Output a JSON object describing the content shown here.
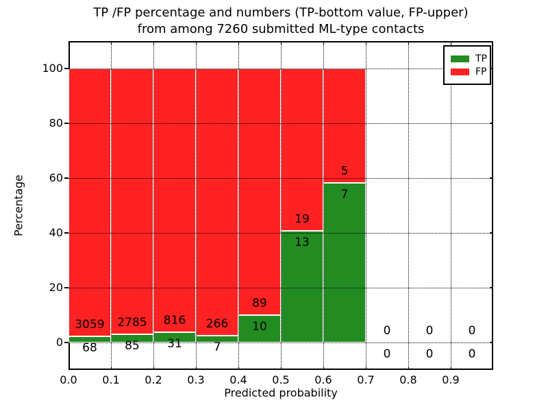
{
  "title": {
    "line1": "TP /FP percentage and numbers (TP-bottom value, FP-upper)",
    "line2": "from among 7260 submitted ML-type contacts"
  },
  "chart_data": {
    "type": "bar",
    "stacked": true,
    "title": "TP /FP percentage and numbers (TP-bottom value, FP-upper) from among 7260 submitted ML-type contacts",
    "xlabel": "Predicted probability",
    "ylabel": "Percentage",
    "xlim": [
      0.0,
      1.0
    ],
    "ylim": [
      -10,
      110
    ],
    "xticks": [
      "0.0",
      "0.1",
      "0.2",
      "0.3",
      "0.4",
      "0.5",
      "0.6",
      "0.7",
      "0.8",
      "0.9"
    ],
    "yticks": [
      0,
      20,
      40,
      60,
      80,
      100
    ],
    "grid": "dotted",
    "bin_width": 0.1,
    "legend": {
      "position": "upper right",
      "entries": [
        {
          "label": "TP",
          "color": "#228b22"
        },
        {
          "label": "FP",
          "color": "#ff2222"
        }
      ]
    },
    "bins": [
      {
        "range": "0.0-0.1",
        "tp": 68,
        "fp": 3059,
        "tp_percent": 2.17,
        "fp_percent": 97.83
      },
      {
        "range": "0.1-0.2",
        "tp": 85,
        "fp": 2785,
        "tp_percent": 2.96,
        "fp_percent": 97.04
      },
      {
        "range": "0.2-0.3",
        "tp": 31,
        "fp": 816,
        "tp_percent": 3.66,
        "fp_percent": 96.34
      },
      {
        "range": "0.3-0.4",
        "tp": 7,
        "fp": 266,
        "tp_percent": 2.56,
        "fp_percent": 97.44
      },
      {
        "range": "0.4-0.5",
        "tp": 10,
        "fp": 89,
        "tp_percent": 10.1,
        "fp_percent": 89.9
      },
      {
        "range": "0.5-0.6",
        "tp": 13,
        "fp": 19,
        "tp_percent": 40.63,
        "fp_percent": 59.38
      },
      {
        "range": "0.6-0.7",
        "tp": 7,
        "fp": 5,
        "tp_percent": 58.33,
        "fp_percent": 41.67
      },
      {
        "range": "0.7-0.8",
        "tp": 0,
        "fp": 0,
        "tp_percent": 0,
        "fp_percent": 0
      },
      {
        "range": "0.8-0.9",
        "tp": 0,
        "fp": 0,
        "tp_percent": 0,
        "fp_percent": 0
      },
      {
        "range": "0.9-1.0",
        "tp": 0,
        "fp": 0,
        "tp_percent": 0,
        "fp_percent": 0
      }
    ]
  }
}
